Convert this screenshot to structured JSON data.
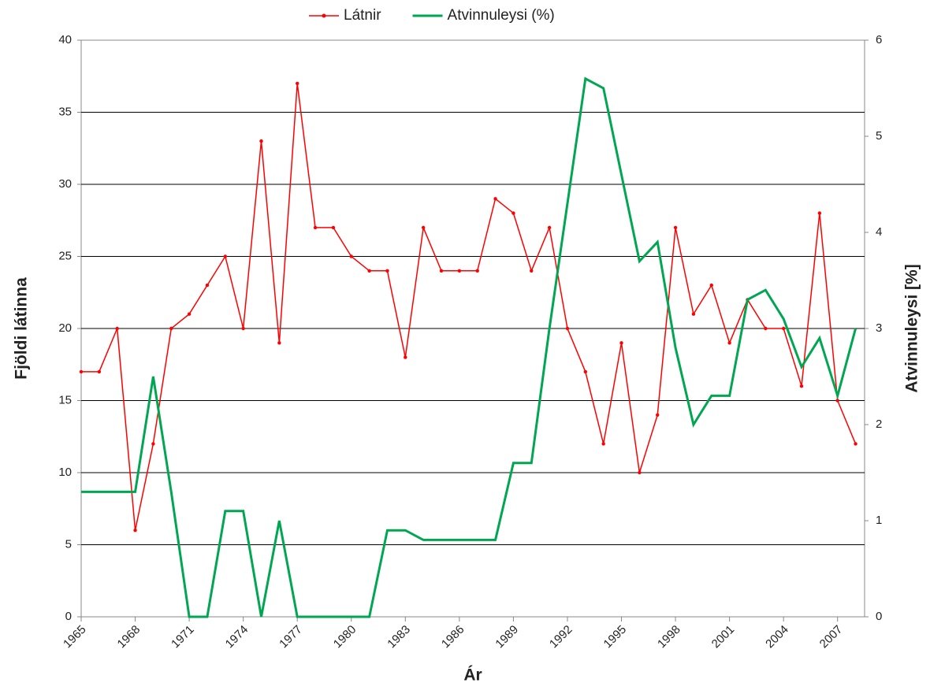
{
  "chart_data": {
    "type": "line",
    "x_label": "Ár",
    "y_label": "Fjöldi látinna",
    "y2_label": "Atvinnuleysi [%]",
    "x": [
      1965,
      1966,
      1967,
      1968,
      1969,
      1970,
      1971,
      1972,
      1973,
      1974,
      1975,
      1976,
      1977,
      1978,
      1979,
      1980,
      1981,
      1982,
      1983,
      1984,
      1985,
      1986,
      1987,
      1988,
      1989,
      1990,
      1991,
      1992,
      1993,
      1994,
      1995,
      1996,
      1997,
      1998,
      1999,
      2000,
      2001,
      2002,
      2003,
      2004,
      2005,
      2006,
      2007,
      2008
    ],
    "series": [
      {
        "name": "Látnir",
        "color": "#ff0000",
        "values": [
          17,
          17,
          20,
          6,
          12,
          20,
          21,
          23,
          25,
          20,
          33,
          19,
          37,
          27,
          27,
          25,
          24,
          24,
          18,
          27,
          24,
          24,
          24,
          29,
          28,
          24,
          27,
          20,
          17,
          12,
          19,
          10,
          14,
          27,
          21,
          23,
          19,
          22,
          20,
          20,
          16,
          28,
          15,
          12
        ]
      },
      {
        "name": "Atvinnuleysi (%)",
        "color": "#00a651",
        "axis": "y2",
        "values": [
          1.3,
          1.3,
          1.3,
          1.3,
          2.5,
          1.3,
          0,
          0,
          1.1,
          1.1,
          0,
          1.0,
          0,
          0,
          0,
          0,
          0,
          0.9,
          0.9,
          0.8,
          0.8,
          0.8,
          0.8,
          0.8,
          1.6,
          1.6,
          3.0,
          4.3,
          5.6,
          5.5,
          4.6,
          3.7,
          3.9,
          2.8,
          2.0,
          2.3,
          2.3,
          3.3,
          3.4,
          3.1,
          2.6,
          2.9,
          2.3,
          3.0
        ]
      }
    ],
    "xlim": [
      1965,
      2008.5
    ],
    "xticks": [
      1965,
      1968,
      1971,
      1974,
      1977,
      1980,
      1983,
      1986,
      1989,
      1992,
      1995,
      1998,
      2001,
      2004,
      2007
    ],
    "ylim": [
      0,
      40
    ],
    "yticks": [
      0,
      5,
      10,
      15,
      20,
      25,
      30,
      35,
      40
    ],
    "y2lim": [
      0,
      6
    ],
    "y2ticks": [
      0,
      1,
      2,
      3,
      4,
      5,
      6
    ],
    "grid": true,
    "legend": "top"
  }
}
